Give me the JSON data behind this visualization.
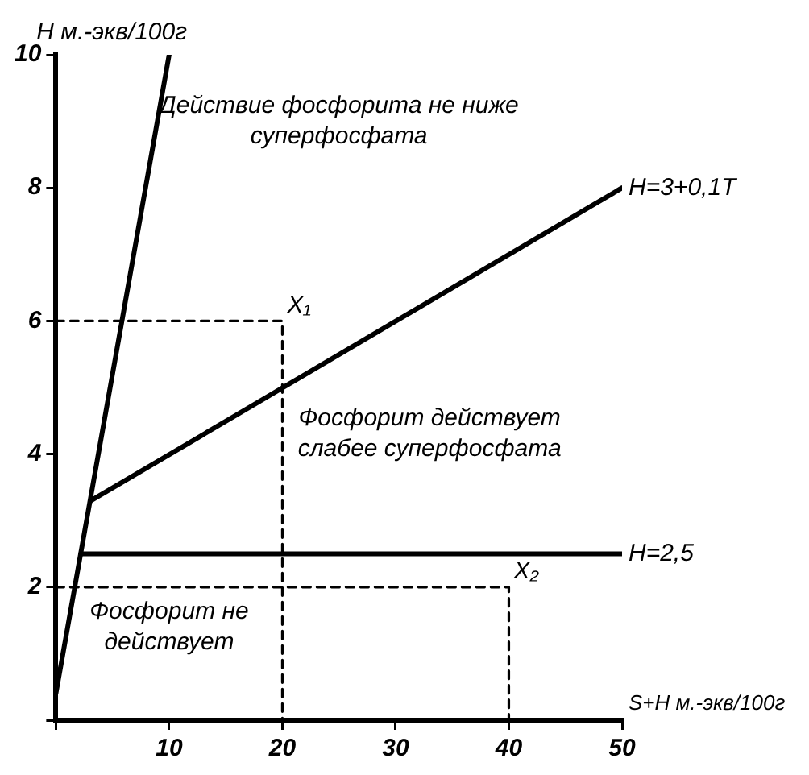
{
  "chart_data": {
    "type": "line",
    "xlabel": "S+H м.-экв/100г",
    "ylabel": "H м.-экв/100г",
    "xlim": [
      0,
      50
    ],
    "ylim": [
      0,
      10
    ],
    "xticks": [
      {
        "value": 0,
        "label": null
      },
      10,
      20,
      30,
      40,
      50
    ],
    "yticks": [
      {
        "value": 0,
        "label": null
      },
      2,
      4,
      6,
      8,
      10
    ],
    "grid": false,
    "legend": false,
    "marker": "none",
    "series": [
      {
        "color": "#000000",
        "x": [
          0,
          10
        ],
        "values": [
          0.4,
          10
        ]
      },
      {
        "color": "#000000",
        "x": [
          3.1,
          50
        ],
        "values": [
          3.3,
          8
        ]
      },
      {
        "color": "#000000",
        "x": [
          2.2,
          50
        ],
        "values": [
          2.5,
          2.5
        ]
      },
      {
        "color": "#000000",
        "line_style": "dashed",
        "x": [
          0,
          20,
          20
        ],
        "values": [
          6,
          6,
          0
        ]
      },
      {
        "color": "#000000",
        "line_style": "dashed",
        "x": [
          0,
          40,
          40
        ],
        "values": [
          2,
          2,
          0
        ]
      }
    ],
    "annotations": [
      "Действие фосфорита не ниже суперфосфата",
      {
        "text": "H=3+0,1T",
        "x": 50,
        "y": 8
      },
      {
        "text": "X₁",
        "x": 20,
        "y": 6
      },
      "Фосфорит действует слабее суперфосфата",
      {
        "text": "H=2,5",
        "x": 50,
        "y": 2.5
      },
      {
        "text": "X₂",
        "x": 40,
        "y": 2
      },
      "Фосфорит не действует"
    ]
  }
}
